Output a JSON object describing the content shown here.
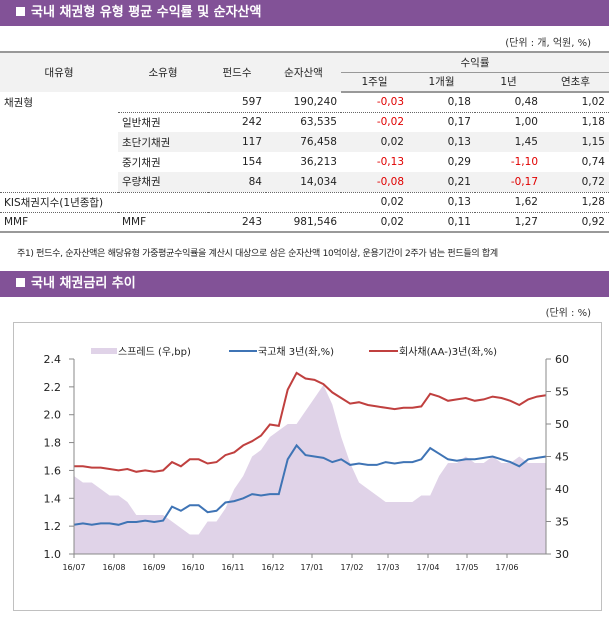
{
  "section1": {
    "title": "국내 채권형 유형 평균 수익률 및 순자산액",
    "unit": "(단위 : 개, 억원, %)",
    "headers": {
      "major": "대유형",
      "minor": "소유형",
      "funds": "펀드수",
      "assets": "순자산액",
      "returns": "수익률",
      "w1": "1주일",
      "m1": "1개월",
      "y1": "1년",
      "ytd": "연초후"
    },
    "rows": [
      {
        "major": "채권형",
        "minor": "",
        "funds": "597",
        "assets": "190,240",
        "w1": "-0,03",
        "m1": "0,18",
        "y1": "0,48",
        "ytd": "1,02"
      },
      {
        "major": "",
        "minor": "일반채권",
        "funds": "242",
        "assets": "63,535",
        "w1": "-0,02",
        "m1": "0,17",
        "y1": "1,00",
        "ytd": "1,18"
      },
      {
        "major": "",
        "minor": "초단기채권",
        "funds": "117",
        "assets": "76,458",
        "w1": "0,02",
        "m1": "0,13",
        "y1": "1,45",
        "ytd": "1,15"
      },
      {
        "major": "",
        "minor": "중기채권",
        "funds": "154",
        "assets": "36,213",
        "w1": "-0,13",
        "m1": "0,29",
        "y1": "-1,10",
        "ytd": "0,74"
      },
      {
        "major": "",
        "minor": "우량채권",
        "funds": "84",
        "assets": "14,034",
        "w1": "-0,08",
        "m1": "0,21",
        "y1": "-0,17",
        "ytd": "0,72"
      },
      {
        "major": "KIS채권지수(1년종합)",
        "minor": "",
        "funds": "",
        "assets": "",
        "w1": "0,02",
        "m1": "0,13",
        "y1": "1,62",
        "ytd": "1,28"
      },
      {
        "major": "MMF",
        "minor": "MMF",
        "funds": "243",
        "assets": "981,546",
        "w1": "0,02",
        "m1": "0,11",
        "y1": "1,27",
        "ytd": "0,92"
      }
    ],
    "note": "주1) 펀드수, 순자산액은 해당유형 가중평균수익률을 계산시 대상으로 삼은 순자산액 10억이상, 운용기간이 2주가 넘는 펀드들의 합계"
  },
  "section2": {
    "title": "국내 채권금리 추이",
    "unit": "(단위 : %)"
  },
  "colors": {
    "header_bar": "#825297",
    "negative": "#e00000",
    "spread": "#e0d3e8",
    "ktb": "#3f74b5",
    "corp": "#c0403f"
  },
  "chart_data": {
    "type": "line",
    "title": "",
    "legend": [
      "스프레드 (우,bp)",
      "국고채 3년(좌,%)",
      "회사채(AA-)3년(좌,%)"
    ],
    "legend_position": "top",
    "x_ticks": [
      "16/07",
      "16/08",
      "16/09",
      "16/10",
      "16/11",
      "16/12",
      "17/01",
      "17/02",
      "17/03",
      "17/04",
      "17/05",
      "17/06"
    ],
    "y_left": {
      "min": 1.0,
      "max": 2.4,
      "ticks": [
        "1.0",
        "1.2",
        "1.4",
        "1.6",
        "1.8",
        "2.0",
        "2.2",
        "2.4"
      ]
    },
    "y_right": {
      "min": 30,
      "max": 60,
      "ticks": [
        "30",
        "35",
        "40",
        "45",
        "50",
        "55",
        "60"
      ]
    },
    "x_range_months": [
      0,
      12
    ],
    "series": [
      {
        "name": "국고채 3년(좌,%)",
        "axis": "left",
        "kind": "line",
        "values": [
          1.21,
          1.22,
          1.21,
          1.22,
          1.22,
          1.21,
          1.23,
          1.23,
          1.24,
          1.23,
          1.24,
          1.34,
          1.31,
          1.35,
          1.35,
          1.3,
          1.31,
          1.37,
          1.38,
          1.4,
          1.43,
          1.42,
          1.43,
          1.43,
          1.68,
          1.78,
          1.71,
          1.7,
          1.69,
          1.66,
          1.68,
          1.64,
          1.65,
          1.64,
          1.64,
          1.66,
          1.65,
          1.66,
          1.66,
          1.68,
          1.76,
          1.72,
          1.68,
          1.67,
          1.68,
          1.68,
          1.69,
          1.7,
          1.68,
          1.66,
          1.63,
          1.68,
          1.69,
          1.7
        ]
      },
      {
        "name": "회사채(AA-)3년(좌,%)",
        "axis": "left",
        "kind": "line",
        "values": [
          1.63,
          1.63,
          1.62,
          1.62,
          1.61,
          1.6,
          1.61,
          1.59,
          1.6,
          1.59,
          1.6,
          1.66,
          1.63,
          1.68,
          1.68,
          1.65,
          1.66,
          1.71,
          1.73,
          1.78,
          1.81,
          1.85,
          1.93,
          1.92,
          2.18,
          2.3,
          2.26,
          2.25,
          2.22,
          2.16,
          2.12,
          2.08,
          2.09,
          2.07,
          2.06,
          2.05,
          2.04,
          2.05,
          2.05,
          2.06,
          2.15,
          2.13,
          2.1,
          2.11,
          2.12,
          2.1,
          2.11,
          2.13,
          2.12,
          2.1,
          2.07,
          2.11,
          2.13,
          2.14
        ]
      },
      {
        "name": "스프레드 (우,bp)",
        "axis": "right",
        "kind": "area",
        "values": [
          42,
          41,
          41,
          40,
          39,
          39,
          38,
          36,
          36,
          36,
          36,
          35,
          34,
          33,
          33,
          35,
          35,
          37,
          40,
          42,
          45,
          46,
          48,
          49,
          50,
          50,
          52,
          54,
          56,
          53,
          48,
          44,
          41,
          40,
          39,
          38,
          38,
          38,
          38,
          39,
          39,
          42,
          44,
          44,
          45,
          44,
          44,
          45,
          44,
          44,
          45,
          44,
          44,
          44
        ]
      }
    ]
  }
}
